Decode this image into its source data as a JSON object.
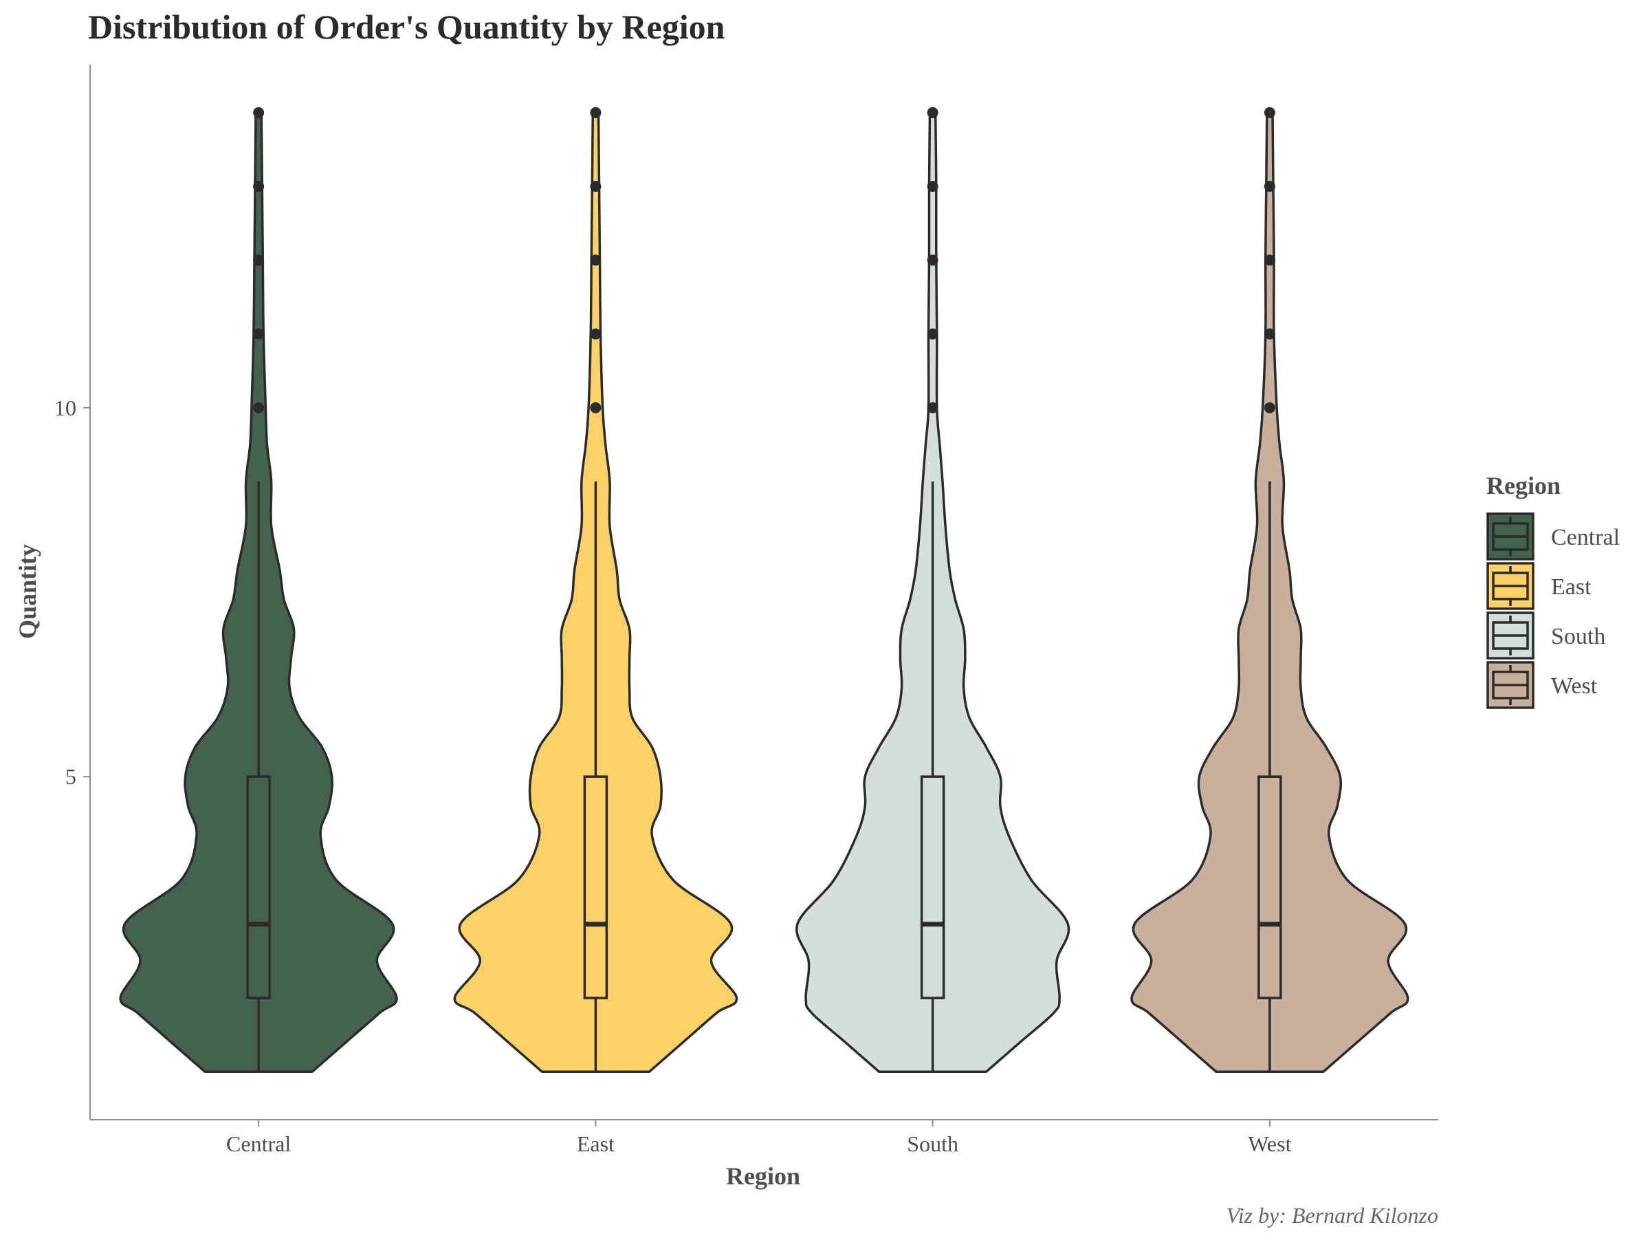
{
  "chart_data": {
    "type": "violin",
    "title": "Distribution of Order's Quantity by Region",
    "xlabel": "Region",
    "ylabel": "Quantity",
    "caption": "Viz by: Bernard Kilonzo",
    "categories": [
      "Central",
      "East",
      "South",
      "West"
    ],
    "ylim": [
      0.35,
      14.65
    ],
    "yticks": [
      5,
      10
    ],
    "grid": false,
    "legend": {
      "title": "Region",
      "position": "right"
    },
    "series": [
      {
        "category": "Central",
        "color": "#44634f",
        "box": {
          "min": 1,
          "q1": 2,
          "median": 3,
          "q3": 5,
          "max": 9
        },
        "outliers": [
          10,
          11,
          12,
          13,
          14
        ],
        "density": {
          "y": [
            1,
            1.4,
            1.8,
            2.0,
            2.5,
            3.0,
            3.6,
            4.2,
            4.6,
            5.0,
            5.4,
            5.8,
            6.2,
            6.6,
            7.0,
            7.4,
            7.8,
            8.4,
            9.0,
            9.5,
            10,
            11,
            12,
            13,
            14
          ],
          "w": [
            0.38,
            0.62,
            0.86,
            0.98,
            0.84,
            0.95,
            0.55,
            0.44,
            0.5,
            0.52,
            0.45,
            0.29,
            0.22,
            0.23,
            0.25,
            0.18,
            0.15,
            0.09,
            0.09,
            0.06,
            0.05,
            0.035,
            0.03,
            0.025,
            0.02
          ]
        }
      },
      {
        "category": "East",
        "color": "#fdd166",
        "box": {
          "min": 1,
          "q1": 2,
          "median": 3,
          "q3": 5,
          "max": 9
        },
        "outliers": [
          10,
          11,
          12,
          13,
          14
        ],
        "density": {
          "y": [
            1,
            1.4,
            1.8,
            2.0,
            2.5,
            3.0,
            3.6,
            4.2,
            4.6,
            5.0,
            5.4,
            5.8,
            6.2,
            6.6,
            7.0,
            7.4,
            7.8,
            8.4,
            9.0,
            9.5,
            10,
            11,
            12,
            13,
            14
          ],
          "w": [
            0.38,
            0.62,
            0.86,
            1.0,
            0.82,
            0.96,
            0.55,
            0.4,
            0.46,
            0.46,
            0.4,
            0.26,
            0.24,
            0.24,
            0.24,
            0.17,
            0.15,
            0.1,
            0.1,
            0.07,
            0.05,
            0.035,
            0.03,
            0.025,
            0.02
          ]
        }
      },
      {
        "category": "South",
        "color": "#d4dfdd",
        "box": {
          "min": 1,
          "q1": 2,
          "median": 3,
          "q3": 5,
          "max": 9
        },
        "outliers": [
          10,
          11,
          12,
          13,
          14
        ],
        "density": {
          "y": [
            1,
            1.4,
            1.8,
            2.0,
            2.5,
            3.0,
            3.6,
            4.2,
            4.6,
            5.0,
            5.4,
            5.8,
            6.2,
            6.6,
            7.0,
            7.4,
            7.8,
            8.4,
            9.0,
            9.5,
            10,
            11,
            12,
            13,
            14
          ],
          "w": [
            0.38,
            0.62,
            0.86,
            0.9,
            0.88,
            0.96,
            0.7,
            0.54,
            0.48,
            0.48,
            0.38,
            0.26,
            0.22,
            0.23,
            0.22,
            0.16,
            0.12,
            0.09,
            0.07,
            0.05,
            0.03,
            0.03,
            0.025,
            0.025,
            0.02
          ]
        }
      },
      {
        "category": "West",
        "color": "#c8b09c",
        "box": {
          "min": 1,
          "q1": 2,
          "median": 3,
          "q3": 5,
          "max": 9
        },
        "outliers": [
          10,
          11,
          12,
          13,
          14
        ],
        "density": {
          "y": [
            1,
            1.4,
            1.8,
            2.0,
            2.5,
            3.0,
            3.6,
            4.2,
            4.6,
            5.0,
            5.4,
            5.8,
            6.2,
            6.6,
            7.0,
            7.4,
            7.8,
            8.4,
            9.0,
            9.5,
            10,
            11,
            12,
            13,
            14
          ],
          "w": [
            0.38,
            0.62,
            0.86,
            0.98,
            0.84,
            0.96,
            0.55,
            0.42,
            0.48,
            0.5,
            0.4,
            0.26,
            0.22,
            0.22,
            0.22,
            0.16,
            0.14,
            0.09,
            0.1,
            0.07,
            0.05,
            0.03,
            0.03,
            0.025,
            0.02
          ]
        }
      }
    ]
  }
}
